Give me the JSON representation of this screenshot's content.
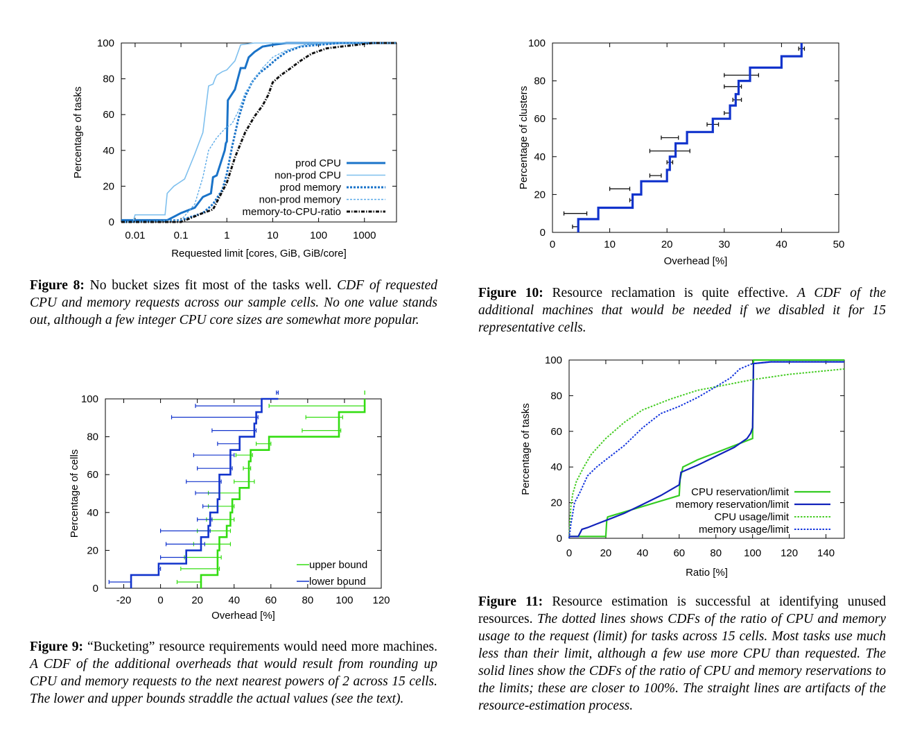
{
  "figures": {
    "fig8": {
      "caption_label": "Figure 8:",
      "caption_bold_tail": " No bucket sizes fit most of the tasks well. ",
      "caption_italic": "CDF of requested CPU and memory requests across our sample cells. No one value stands out, although a few integer CPU core sizes are somewhat more popular."
    },
    "fig9": {
      "caption_label": "Figure 9:",
      "caption_bold_tail": " “Bucketing” resource requirements would need more machines. ",
      "caption_italic": "A CDF of the additional overheads that would result from rounding up CPU and memory requests to the next nearest powers of 2 across 15 cells. The lower and upper bounds straddle the actual values (see the text)."
    },
    "fig10": {
      "caption_label": "Figure 10:",
      "caption_bold_tail": " Resource reclamation is quite effective. ",
      "caption_italic": "A CDF of the additional machines that would be needed if we disabled it for 15 representative cells."
    },
    "fig11": {
      "caption_label": "Figure 11:",
      "caption_bold_tail": " Resource estimation is successful at identifying unused resources. ",
      "caption_italic": "The dotted lines shows CDFs of the ratio of CPU and memory usage to the request (limit) for tasks across 15 cells. Most tasks use much less than their limit, although a few use more CPU than requested. The solid lines show the CDFs of the ratio of CPU and memory reservations to the limits; these are closer to 100%. The straight lines are artifacts of the resource-estimation process."
    }
  },
  "chart_data": [
    {
      "id": "fig8",
      "type": "line",
      "title": "",
      "xlabel": "Requested limit [cores, GiB, GiB/core]",
      "ylabel": "Percentage of tasks",
      "x_scale": "log",
      "xlim": [
        0.005,
        5000
      ],
      "ylim": [
        0,
        100
      ],
      "xticks": [
        "0.01",
        "0.1",
        "1",
        "10",
        "100",
        "1000"
      ],
      "xtick_values": [
        0.01,
        0.1,
        1,
        10,
        100,
        1000
      ],
      "yticks": [
        "0",
        "20",
        "40",
        "60",
        "80",
        "100"
      ],
      "legend_position": "bottom-right",
      "series": [
        {
          "name": "prod CPU",
          "color": "#1a73c8",
          "style": "solid-thick",
          "x": [
            0.005,
            0.05,
            0.1,
            0.2,
            0.3,
            0.45,
            0.5,
            0.6,
            0.9,
            0.95,
            1,
            1.05,
            1.5,
            2,
            2.5,
            3,
            4,
            6,
            10,
            20,
            100,
            5000
          ],
          "y": [
            1,
            1,
            5,
            8,
            14,
            16,
            25,
            26,
            40,
            44,
            45,
            68,
            74,
            86,
            86,
            92,
            95,
            98,
            99,
            100,
            100,
            100
          ]
        },
        {
          "name": "non-prod CPU",
          "color": "#7fc0ee",
          "style": "solid-thin",
          "x": [
            0.005,
            0.009,
            0.01,
            0.045,
            0.05,
            0.07,
            0.12,
            0.2,
            0.3,
            0.4,
            0.5,
            0.55,
            0.6,
            0.8,
            1,
            1.5,
            2,
            4,
            10,
            5000
          ],
          "y": [
            0,
            0,
            4,
            4,
            16,
            20,
            24,
            38,
            50,
            76,
            77,
            80,
            82,
            84,
            85,
            90,
            99,
            100,
            100,
            100
          ]
        },
        {
          "name": "prod memory",
          "color": "#1a73c8",
          "style": "dotted-thick",
          "x": [
            0.005,
            0.1,
            0.3,
            0.5,
            0.8,
            1,
            1.3,
            1.8,
            2.5,
            3.5,
            5,
            8,
            12,
            20,
            40,
            100,
            300,
            5000
          ],
          "y": [
            0,
            1,
            5,
            10,
            18,
            27,
            42,
            58,
            70,
            78,
            83,
            87,
            91,
            95,
            98,
            99,
            100,
            100
          ]
        },
        {
          "name": "non-prod memory",
          "color": "#5aaae8",
          "style": "dashed-thin",
          "x": [
            0.005,
            0.1,
            0.2,
            0.3,
            0.4,
            0.6,
            0.9,
            1.3,
            1.8,
            2.5,
            4,
            6,
            10,
            20,
            50,
            200,
            5000
          ],
          "y": [
            0,
            1,
            10,
            25,
            40,
            47,
            52,
            55,
            62,
            72,
            80,
            86,
            92,
            96,
            99,
            100,
            100
          ]
        },
        {
          "name": "memory-to-CPU-ratio",
          "color": "#111111",
          "style": "dashdot-thick",
          "x": [
            0.005,
            0.1,
            0.3,
            0.5,
            1,
            1.5,
            2.5,
            4,
            6,
            8,
            10,
            15,
            25,
            40,
            70,
            150,
            300,
            700,
            1500,
            5000
          ],
          "y": [
            0,
            0,
            5,
            7,
            22,
            36,
            50,
            59,
            65,
            71,
            78,
            82,
            86,
            90,
            94,
            97,
            98,
            99,
            100,
            100
          ]
        }
      ]
    },
    {
      "id": "fig9",
      "type": "line",
      "title": "",
      "xlabel": "Overhead [%]",
      "ylabel": "Percentage of cells",
      "xlim": [
        -30,
        120
      ],
      "ylim": [
        0,
        100
      ],
      "xticks": [
        "-20",
        "0",
        "20",
        "40",
        "60",
        "80",
        "100",
        "120"
      ],
      "xtick_values": [
        -20,
        0,
        20,
        40,
        60,
        80,
        100,
        120
      ],
      "yticks": [
        "0",
        "20",
        "40",
        "60",
        "80",
        "100"
      ],
      "legend_position": "bottom-right",
      "series": [
        {
          "name": "upper bound",
          "color": "#33dd11",
          "style": "step",
          "x": [
            22,
            31,
            31,
            32,
            36,
            38,
            39,
            43,
            48,
            48,
            49,
            59,
            97,
            97,
            111,
            111
          ],
          "y": [
            0,
            7,
            13,
            20,
            27,
            33,
            40,
            47,
            53,
            60,
            67,
            73,
            80,
            87,
            93,
            100
          ],
          "err_left": [
            9,
            11,
            13,
            18,
            20,
            25,
            26,
            26,
            40,
            45,
            41,
            52,
            77,
            79,
            59,
            111
          ],
          "err_right": [
            22,
            32,
            33,
            38,
            38,
            40,
            40,
            43,
            51,
            49,
            50,
            60,
            98,
            99,
            111,
            111
          ]
        },
        {
          "name": "lower bound",
          "color": "#1133cc",
          "style": "step",
          "x": [
            -16,
            -1,
            14,
            22,
            26,
            27,
            31,
            32,
            32,
            38,
            38,
            43,
            51,
            52,
            55,
            64
          ],
          "y": [
            0,
            7,
            13,
            20,
            27,
            33,
            40,
            47,
            53,
            60,
            67,
            73,
            80,
            87,
            93,
            100
          ],
          "err_left": [
            -28,
            -1,
            0,
            3,
            0,
            20,
            23,
            19,
            14,
            20,
            18,
            31,
            28,
            6,
            19,
            63
          ],
          "err_right": [
            -16,
            0,
            14,
            24,
            27,
            28,
            31,
            32,
            33,
            39,
            40,
            43,
            52,
            53,
            55,
            64
          ]
        }
      ]
    },
    {
      "id": "fig10",
      "type": "line",
      "title": "",
      "xlabel": "Overhead [%]",
      "ylabel": "Percentage of clusters",
      "xlim": [
        0,
        50
      ],
      "ylim": [
        0,
        100
      ],
      "xticks": [
        "0",
        "10",
        "20",
        "30",
        "40",
        "50"
      ],
      "xtick_values": [
        0,
        10,
        20,
        30,
        40,
        50
      ],
      "yticks": [
        "0",
        "20",
        "40",
        "60",
        "80",
        "100"
      ],
      "series": [
        {
          "name": "",
          "color": "#1133cc",
          "style": "step",
          "x": [
            4.5,
            8,
            14,
            15.5,
            20,
            20.5,
            21.5,
            23.5,
            28,
            31,
            32,
            32.5,
            34.5,
            40,
            43.5
          ],
          "y": [
            0,
            7,
            13,
            20,
            27,
            33,
            40,
            47,
            53,
            60,
            67,
            73,
            80,
            87,
            93
          ],
          "points_y": [
            3,
            10,
            17,
            23,
            30,
            37,
            43,
            50,
            57,
            63,
            70,
            77,
            83,
            97
          ],
          "err_left": [
            3.5,
            2,
            13.5,
            10,
            17,
            20,
            17,
            19,
            27,
            30,
            31.5,
            30,
            30,
            43
          ],
          "err_right": [
            4.5,
            6,
            14,
            13.5,
            19,
            21,
            24,
            22,
            29,
            31,
            33,
            33,
            36,
            44
          ]
        }
      ]
    },
    {
      "id": "fig11",
      "type": "line",
      "title": "",
      "xlabel": "Ratio [%]",
      "ylabel": "Percentage of tasks",
      "xlim": [
        0,
        150
      ],
      "ylim": [
        0,
        100
      ],
      "xticks": [
        "0",
        "20",
        "40",
        "60",
        "80",
        "100",
        "120",
        "140"
      ],
      "xtick_values": [
        0,
        20,
        40,
        60,
        80,
        100,
        120,
        140
      ],
      "yticks": [
        "0",
        "20",
        "40",
        "60",
        "80",
        "100"
      ],
      "legend_position": "bottom-right",
      "series": [
        {
          "name": "CPU reservation/limit",
          "color": "#33cc22",
          "style": "solid",
          "x": [
            0,
            20,
            20.5,
            21,
            60,
            60.5,
            62,
            70,
            80,
            90,
            100,
            100.5,
            110,
            150
          ],
          "y": [
            1,
            1,
            10,
            12,
            24,
            33,
            40,
            44,
            48,
            52,
            56,
            100,
            100,
            100
          ]
        },
        {
          "name": "memory reservation/limit",
          "color": "#1122bb",
          "style": "solid",
          "x": [
            0,
            5,
            7,
            10,
            15,
            20,
            25,
            30,
            40,
            50,
            60,
            61,
            70,
            80,
            90,
            97,
            99,
            100,
            100.5,
            110,
            150
          ],
          "y": [
            1,
            1,
            5,
            6,
            8,
            10,
            12,
            14,
            19,
            24,
            30,
            37,
            41,
            46,
            51,
            56,
            59,
            62,
            98,
            99,
            99
          ]
        },
        {
          "name": "CPU usage/limit",
          "color": "#44cc22",
          "style": "dotted",
          "x": [
            0,
            0.5,
            1,
            2,
            4,
            8,
            12,
            20,
            30,
            40,
            55,
            70,
            85,
            100,
            120,
            150
          ],
          "y": [
            0,
            10,
            18,
            25,
            32,
            40,
            47,
            56,
            65,
            72,
            78,
            83,
            86,
            89,
            92,
            95
          ]
        },
        {
          "name": "memory usage/limit",
          "color": "#1133dd",
          "style": "dotted",
          "x": [
            0,
            1,
            3,
            6,
            10,
            15,
            20,
            30,
            40,
            50,
            60,
            70,
            80,
            88,
            93,
            100,
            110,
            150
          ],
          "y": [
            0,
            8,
            20,
            26,
            35,
            40,
            44,
            52,
            62,
            70,
            74,
            79,
            85,
            90,
            95,
            98,
            99,
            99
          ]
        }
      ]
    }
  ]
}
